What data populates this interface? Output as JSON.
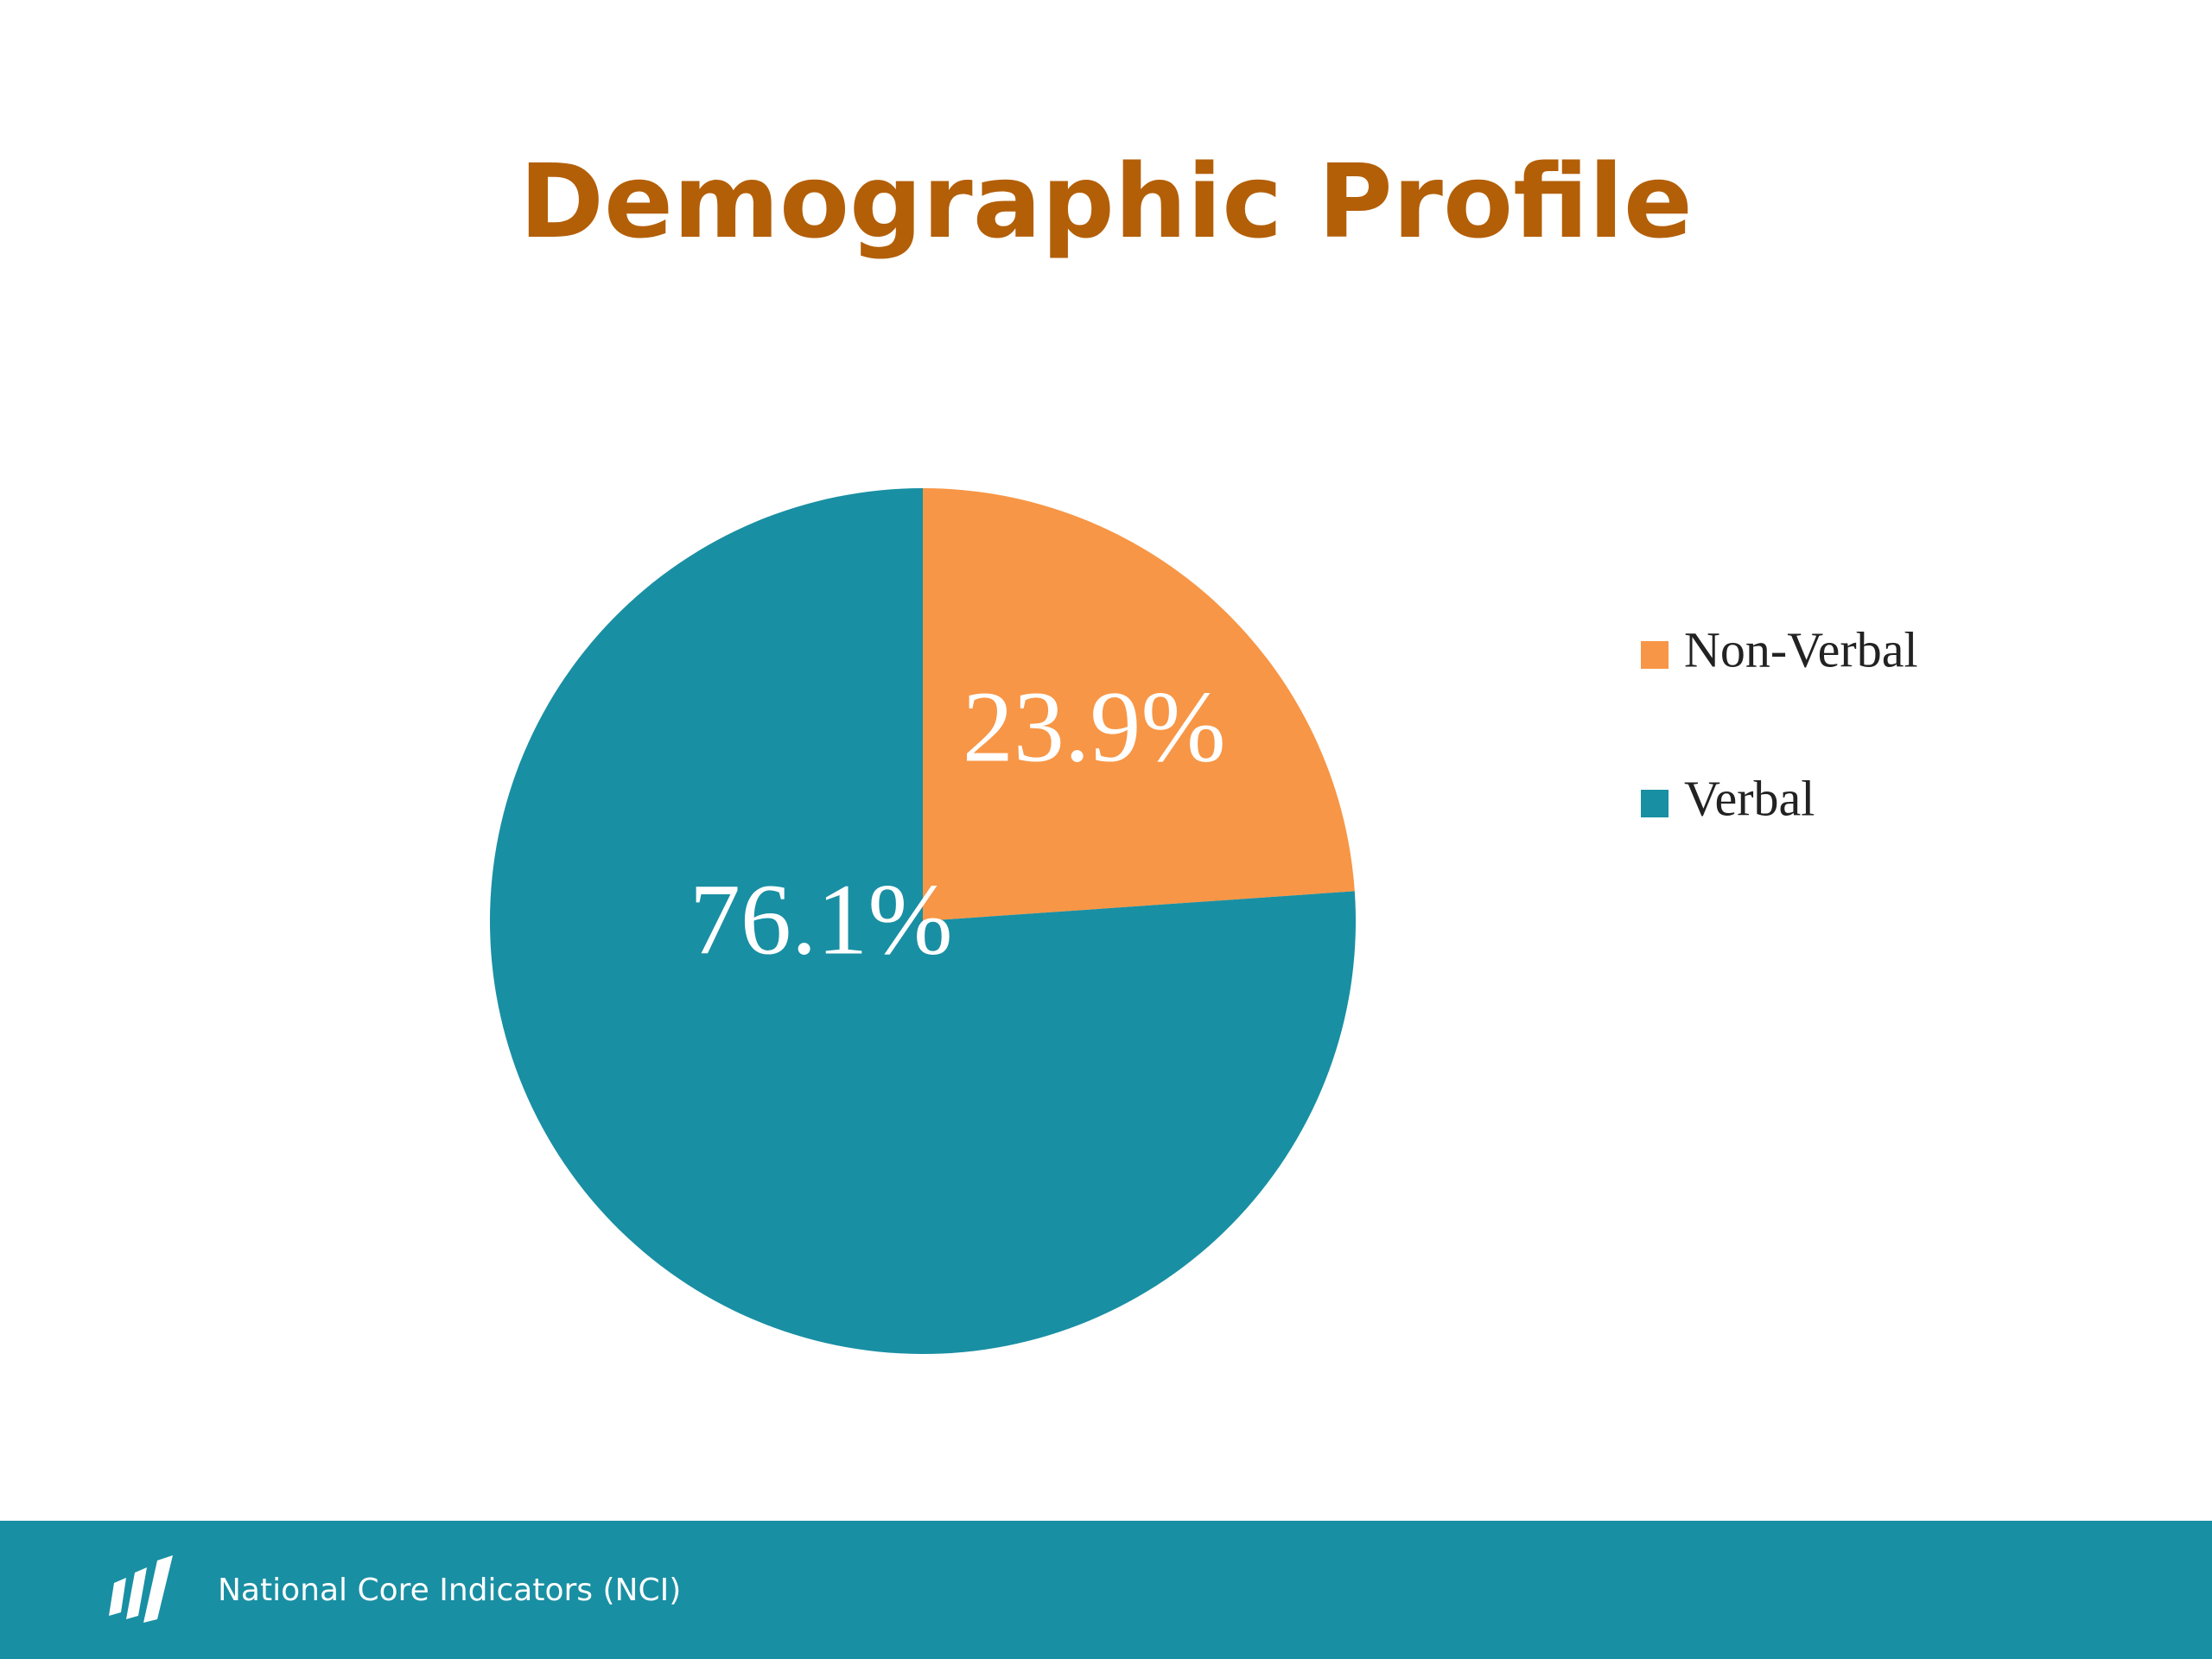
{
  "chart_data": {
    "type": "pie",
    "title": "Demographic Profile",
    "categories": [
      "Non-Verbal",
      "Verbal"
    ],
    "values": [
      23.9,
      76.1
    ],
    "value_labels": [
      "23.9%",
      "76.1%"
    ],
    "colors": [
      "#f79646",
      "#198fa3"
    ],
    "legend": "right"
  },
  "footer": {
    "text": "National Core Indicators (NCI)"
  }
}
